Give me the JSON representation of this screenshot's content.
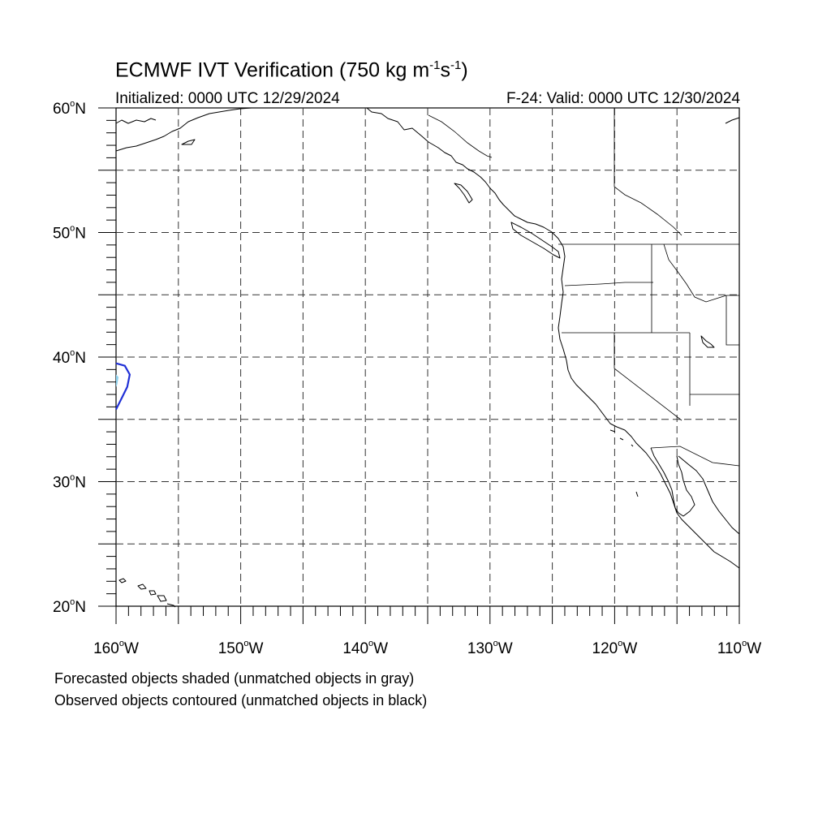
{
  "title": {
    "prefix": "ECMWF IVT Verification (750 kg m",
    "exp1": "-1",
    "mid": "s",
    "exp2": "-1",
    "suffix": ")"
  },
  "initialized": "Initialized: 0000 UTC 12/29/2024",
  "valid": "F-24: Valid: 0000 UTC 12/30/2024",
  "legend": {
    "forecast": "Forecasted objects shaded (unmatched objects in gray)",
    "observed": "Observed objects contoured (unmatched objects in black)"
  },
  "axes": {
    "lon_ticks": [
      {
        "value": -160,
        "label": "160"
      },
      {
        "value": -150,
        "label": "150"
      },
      {
        "value": -140,
        "label": "140"
      },
      {
        "value": -130,
        "label": "130"
      },
      {
        "value": -120,
        "label": "120"
      },
      {
        "value": -110,
        "label": "110"
      }
    ],
    "lat_ticks": [
      {
        "value": 20,
        "label": "20"
      },
      {
        "value": 30,
        "label": "30"
      },
      {
        "value": 40,
        "label": "40"
      },
      {
        "value": 50,
        "label": "50"
      },
      {
        "value": 60,
        "label": "60"
      }
    ],
    "deg_symbol": "o",
    "lon_suffix": "W",
    "lat_suffix": "N",
    "lon_range": [
      -160,
      -110
    ],
    "lat_range": [
      20,
      60
    ],
    "grid_spacing_deg": 5
  },
  "colors": {
    "observed_contour": "#1f2fd6",
    "forecast_fill": "#8fd3ef",
    "coastline": "#000000"
  },
  "observed_object": {
    "points": [
      [
        -160,
        39.5
      ],
      [
        -159.3,
        39.3
      ],
      [
        -158.9,
        38.6
      ],
      [
        -159.1,
        37.6
      ],
      [
        -159.5,
        36.8
      ],
      [
        -160,
        35.8
      ]
    ]
  },
  "forecast_object": {
    "points": [
      [
        -160,
        38.6
      ],
      [
        -159.8,
        38.4
      ],
      [
        -159.9,
        37.8
      ],
      [
        -160,
        37.6
      ]
    ]
  }
}
